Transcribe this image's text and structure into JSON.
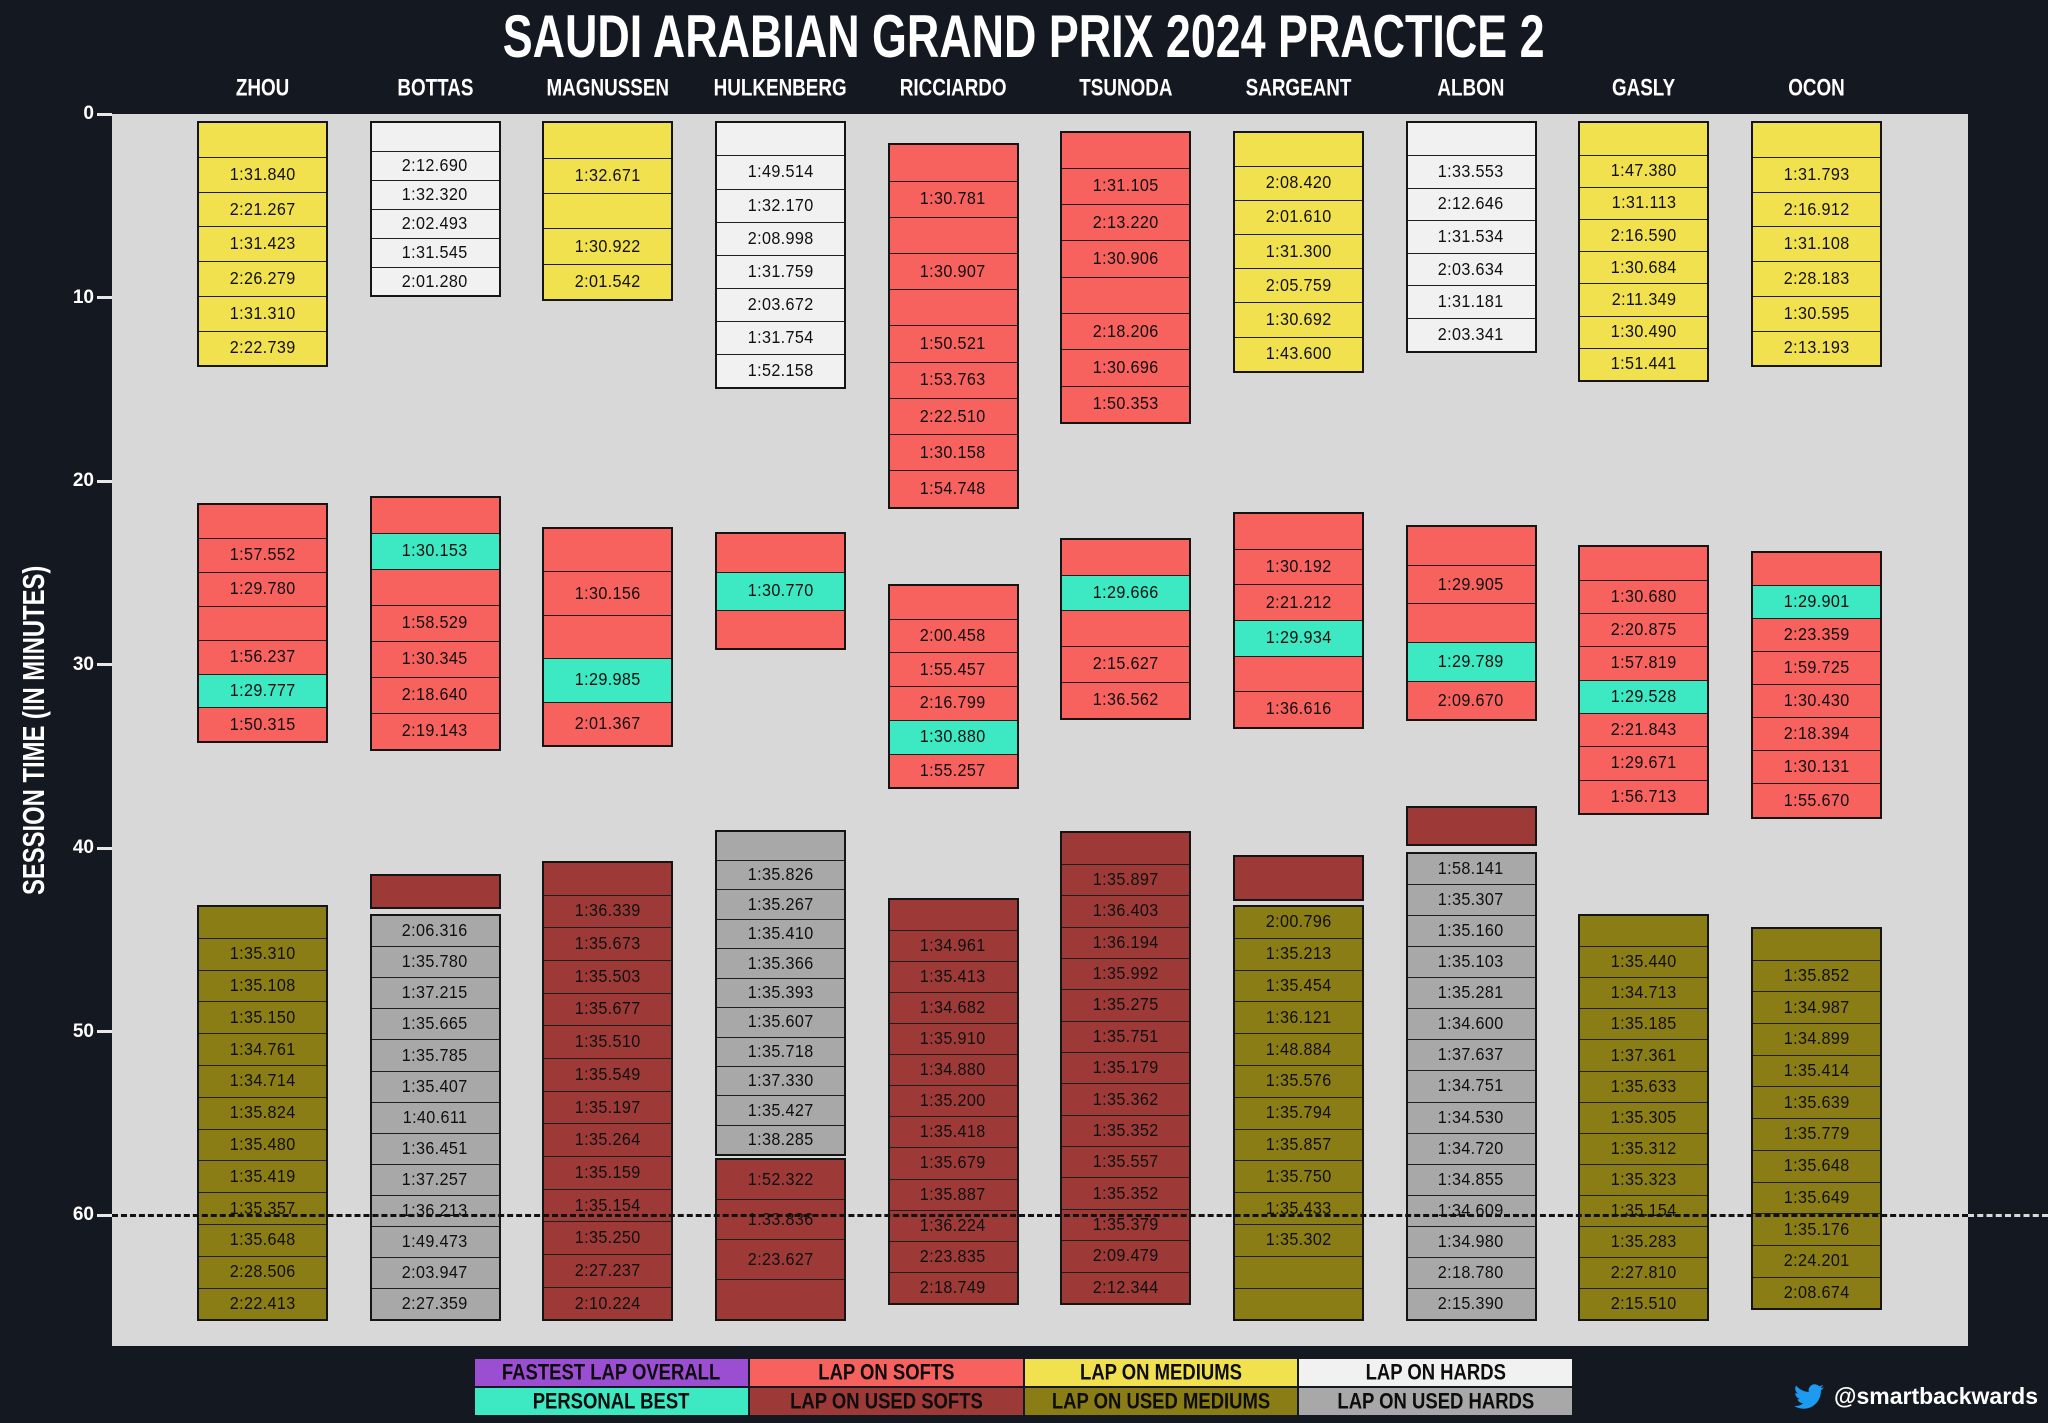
{
  "title": "SAUDI ARABIAN GRAND PRIX 2024 PRACTICE 2",
  "footer": {
    "handle": "@smartbackwards"
  },
  "colors": {
    "page_bg": "#141820",
    "plot_bg": "#d8d8d8",
    "soft": "#f7615e",
    "medium": "#f2e14e",
    "hard": "#f1f1f1",
    "used_soft": "#9d3a38",
    "used_medium": "#8b7d16",
    "used_hard": "#a8a8a8",
    "personal_best": "#3ce9c3",
    "fastest_overall": "#9b4ed2",
    "twitter_blue": "#1d9bf0"
  },
  "chart_data": {
    "type": "table",
    "subtype": "f1-practice-session-lap-timeline",
    "title": "SAUDI ARABIAN GRAND PRIX 2024 PRACTICE 2",
    "ylabel": "SESSION TIME (IN MINUTES)",
    "yticks": [
      0,
      10,
      20,
      30,
      40,
      50,
      60
    ],
    "ylim": [
      0,
      67
    ],
    "grid": false,
    "session_end_minute": 60,
    "legend_position": "bottom",
    "legend": [
      [
        {
          "label": "FASTEST LAP OVERALL",
          "color_key": "fastest_overall"
        },
        {
          "label": "LAP ON SOFTS",
          "color_key": "soft"
        },
        {
          "label": "LAP ON MEDIUMS",
          "color_key": "medium"
        },
        {
          "label": "LAP ON HARDS",
          "color_key": "hard"
        }
      ],
      [
        {
          "label": "PERSONAL BEST",
          "color_key": "personal_best"
        },
        {
          "label": "LAP ON USED SOFTS",
          "color_key": "used_soft"
        },
        {
          "label": "LAP ON USED MEDIUMS",
          "color_key": "used_medium"
        },
        {
          "label": "LAP ON USED HARDS",
          "color_key": "used_hard"
        }
      ]
    ],
    "drivers": [
      {
        "name": "ZHOU",
        "stints": [
          {
            "tyre": "medium",
            "start": 0.4,
            "end": 13.8,
            "pb": -1,
            "laps": [
              "",
              "1:31.840",
              "2:21.267",
              "1:31.423",
              "2:26.279",
              "1:31.310",
              "2:22.739"
            ]
          },
          {
            "tyre": "soft",
            "start": 21.2,
            "end": 34.3,
            "pb": 5,
            "laps": [
              "",
              "1:57.552",
              "1:29.780",
              "",
              "1:56.237",
              "1:29.777",
              "1:50.315"
            ]
          },
          {
            "tyre": "used_medium",
            "start": 43.1,
            "end": 65.8,
            "pb": -1,
            "laps": [
              "",
              "1:35.310",
              "1:35.108",
              "1:35.150",
              "1:34.761",
              "1:34.714",
              "1:35.824",
              "1:35.480",
              "1:35.419",
              "1:35.357",
              "1:35.648",
              "2:28.506",
              "2:22.413"
            ]
          }
        ]
      },
      {
        "name": "BOTTAS",
        "stints": [
          {
            "tyre": "hard",
            "start": 0.4,
            "end": 10.0,
            "pb": -1,
            "laps": [
              "",
              "2:12.690",
              "1:32.320",
              "2:02.493",
              "1:31.545",
              "2:01.280"
            ]
          },
          {
            "tyre": "soft",
            "start": 20.8,
            "end": 34.7,
            "pb": 1,
            "laps": [
              "",
              "1:30.153",
              "",
              "1:58.529",
              "1:30.345",
              "2:18.640",
              "2:19.143"
            ]
          },
          {
            "tyre": "used_soft",
            "start": 41.4,
            "end": 43.3,
            "pb": -1,
            "laps": [
              ""
            ]
          },
          {
            "tyre": "used_hard",
            "start": 43.6,
            "end": 65.8,
            "pb": -1,
            "laps": [
              "2:06.316",
              "1:35.780",
              "1:37.215",
              "1:35.665",
              "1:35.785",
              "1:35.407",
              "1:40.611",
              "1:36.451",
              "1:37.257",
              "1:36.213",
              "1:49.473",
              "2:03.947",
              "2:27.359"
            ]
          }
        ]
      },
      {
        "name": "MAGNUSSEN",
        "stints": [
          {
            "tyre": "medium",
            "start": 0.4,
            "end": 10.2,
            "pb": -1,
            "laps": [
              "",
              "1:32.671",
              "",
              "1:30.922",
              "2:01.542"
            ]
          },
          {
            "tyre": "soft",
            "start": 22.5,
            "end": 34.5,
            "pb": 3,
            "laps": [
              "",
              "1:30.156",
              "",
              "1:29.985",
              "2:01.367"
            ]
          },
          {
            "tyre": "used_soft",
            "start": 40.7,
            "end": 65.8,
            "pb": -1,
            "laps": [
              "",
              "1:36.339",
              "1:35.673",
              "1:35.503",
              "1:35.677",
              "1:35.510",
              "1:35.549",
              "1:35.197",
              "1:35.264",
              "1:35.159",
              "1:35.154",
              "1:35.250",
              "2:27.237",
              "2:10.224"
            ]
          }
        ]
      },
      {
        "name": "HULKENBERG",
        "stints": [
          {
            "tyre": "hard",
            "start": 0.4,
            "end": 15.0,
            "pb": -1,
            "laps": [
              "",
              "1:49.514",
              "1:32.170",
              "2:08.998",
              "1:31.759",
              "2:03.672",
              "1:31.754",
              "1:52.158"
            ]
          },
          {
            "tyre": "soft",
            "start": 22.8,
            "end": 29.2,
            "pb": 1,
            "laps": [
              "",
              "1:30.770",
              ""
            ]
          },
          {
            "tyre": "used_hard",
            "start": 39.0,
            "end": 56.8,
            "pb": -1,
            "laps": [
              "",
              "1:35.826",
              "1:35.267",
              "1:35.410",
              "1:35.366",
              "1:35.393",
              "1:35.607",
              "1:35.718",
              "1:37.330",
              "1:35.427",
              "1:38.285"
            ]
          },
          {
            "tyre": "used_soft",
            "start": 56.9,
            "end": 65.8,
            "pb": -1,
            "laps": [
              "1:52.322",
              "1:33.836",
              "2:23.627",
              ""
            ]
          }
        ]
      },
      {
        "name": "RICCIARDO",
        "stints": [
          {
            "tyre": "soft",
            "start": 1.6,
            "end": 21.5,
            "pb": -1,
            "laps": [
              "",
              "1:30.781",
              "",
              "1:30.907",
              "",
              "1:50.521",
              "1:53.763",
              "2:22.510",
              "1:30.158",
              "1:54.748"
            ]
          },
          {
            "tyre": "soft",
            "start": 25.6,
            "end": 36.8,
            "pb": 4,
            "laps": [
              "",
              "2:00.458",
              "1:55.457",
              "2:16.799",
              "1:30.880",
              "1:55.257"
            ]
          },
          {
            "tyre": "used_soft",
            "start": 42.7,
            "end": 64.9,
            "pb": -1,
            "laps": [
              "",
              "1:34.961",
              "1:35.413",
              "1:34.682",
              "1:35.910",
              "1:34.880",
              "1:35.200",
              "1:35.418",
              "1:35.679",
              "1:35.887",
              "1:36.224",
              "2:23.835",
              "2:18.749"
            ]
          }
        ]
      },
      {
        "name": "TSUNODA",
        "stints": [
          {
            "tyre": "soft",
            "start": 0.9,
            "end": 16.9,
            "pb": -1,
            "laps": [
              "",
              "1:31.105",
              "2:13.220",
              "1:30.906",
              "",
              "2:18.206",
              "1:30.696",
              "1:50.353"
            ]
          },
          {
            "tyre": "soft",
            "start": 23.1,
            "end": 33.0,
            "pb": 1,
            "laps": [
              "",
              "1:29.666",
              "",
              "2:15.627",
              "1:36.562"
            ]
          },
          {
            "tyre": "used_soft",
            "start": 39.1,
            "end": 64.9,
            "pb": -1,
            "laps": [
              "",
              "1:35.897",
              "1:36.403",
              "1:36.194",
              "1:35.992",
              "1:35.275",
              "1:35.751",
              "1:35.179",
              "1:35.362",
              "1:35.352",
              "1:35.557",
              "1:35.352",
              "1:35.379",
              "2:09.479",
              "2:12.344"
            ]
          }
        ]
      },
      {
        "name": "SARGEANT",
        "stints": [
          {
            "tyre": "medium",
            "start": 0.9,
            "end": 14.1,
            "pb": -1,
            "laps": [
              "",
              "2:08.420",
              "2:01.610",
              "1:31.300",
              "2:05.759",
              "1:30.692",
              "1:43.600"
            ]
          },
          {
            "tyre": "soft",
            "start": 21.7,
            "end": 33.5,
            "pb": 3,
            "laps": [
              "",
              "1:30.192",
              "2:21.212",
              "1:29.934",
              "",
              "1:36.616"
            ]
          },
          {
            "tyre": "used_soft",
            "start": 40.4,
            "end": 42.9,
            "pb": -1,
            "laps": [
              ""
            ]
          },
          {
            "tyre": "used_medium",
            "start": 43.1,
            "end": 65.8,
            "pb": -1,
            "laps": [
              "2:00.796",
              "1:35.213",
              "1:35.454",
              "1:36.121",
              "1:48.884",
              "1:35.576",
              "1:35.794",
              "1:35.857",
              "1:35.750",
              "1:35.433",
              "1:35.302",
              "",
              ""
            ]
          }
        ]
      },
      {
        "name": "ALBON",
        "stints": [
          {
            "tyre": "hard",
            "start": 0.4,
            "end": 13.0,
            "pb": -1,
            "laps": [
              "",
              "1:33.553",
              "2:12.646",
              "1:31.534",
              "2:03.634",
              "1:31.181",
              "2:03.341"
            ]
          },
          {
            "tyre": "soft",
            "start": 22.4,
            "end": 33.1,
            "pb": 3,
            "laps": [
              "",
              "1:29.905",
              "",
              "1:29.789",
              "2:09.670"
            ]
          },
          {
            "tyre": "used_soft",
            "start": 37.7,
            "end": 39.9,
            "pb": -1,
            "laps": [
              ""
            ]
          },
          {
            "tyre": "used_hard",
            "start": 40.2,
            "end": 65.8,
            "pb": -1,
            "laps": [
              "1:58.141",
              "1:35.307",
              "1:35.160",
              "1:35.103",
              "1:35.281",
              "1:34.600",
              "1:37.637",
              "1:34.751",
              "1:34.530",
              "1:34.720",
              "1:34.855",
              "1:34.609",
              "1:34.980",
              "2:18.780",
              "2:15.390"
            ]
          }
        ]
      },
      {
        "name": "GASLY",
        "stints": [
          {
            "tyre": "medium",
            "start": 0.4,
            "end": 14.6,
            "pb": -1,
            "laps": [
              "",
              "1:47.380",
              "1:31.113",
              "2:16.590",
              "1:30.684",
              "2:11.349",
              "1:30.490",
              "1:51.441"
            ]
          },
          {
            "tyre": "soft",
            "start": 23.5,
            "end": 38.2,
            "pb": 4,
            "laps": [
              "",
              "1:30.680",
              "2:20.875",
              "1:57.819",
              "1:29.528",
              "2:21.843",
              "1:29.671",
              "1:56.713"
            ]
          },
          {
            "tyre": "used_medium",
            "start": 43.6,
            "end": 65.8,
            "pb": -1,
            "laps": [
              "",
              "1:35.440",
              "1:34.713",
              "1:35.185",
              "1:37.361",
              "1:35.633",
              "1:35.305",
              "1:35.312",
              "1:35.323",
              "1:35.154",
              "1:35.283",
              "2:27.810",
              "2:15.510"
            ]
          }
        ]
      },
      {
        "name": "OCON",
        "stints": [
          {
            "tyre": "medium",
            "start": 0.4,
            "end": 13.8,
            "pb": -1,
            "laps": [
              "",
              "1:31.793",
              "2:16.912",
              "1:31.108",
              "2:28.183",
              "1:30.595",
              "2:13.193"
            ]
          },
          {
            "tyre": "soft",
            "start": 23.8,
            "end": 38.4,
            "pb": 1,
            "laps": [
              "",
              "1:29.901",
              "2:23.359",
              "1:59.725",
              "1:30.430",
              "2:18.394",
              "1:30.131",
              "1:55.670"
            ]
          },
          {
            "tyre": "used_medium",
            "start": 44.3,
            "end": 65.2,
            "pb": -1,
            "laps": [
              "",
              "1:35.852",
              "1:34.987",
              "1:34.899",
              "1:35.414",
              "1:35.639",
              "1:35.779",
              "1:35.648",
              "1:35.649",
              "1:35.176",
              "2:24.201",
              "2:08.674"
            ]
          }
        ]
      }
    ]
  }
}
